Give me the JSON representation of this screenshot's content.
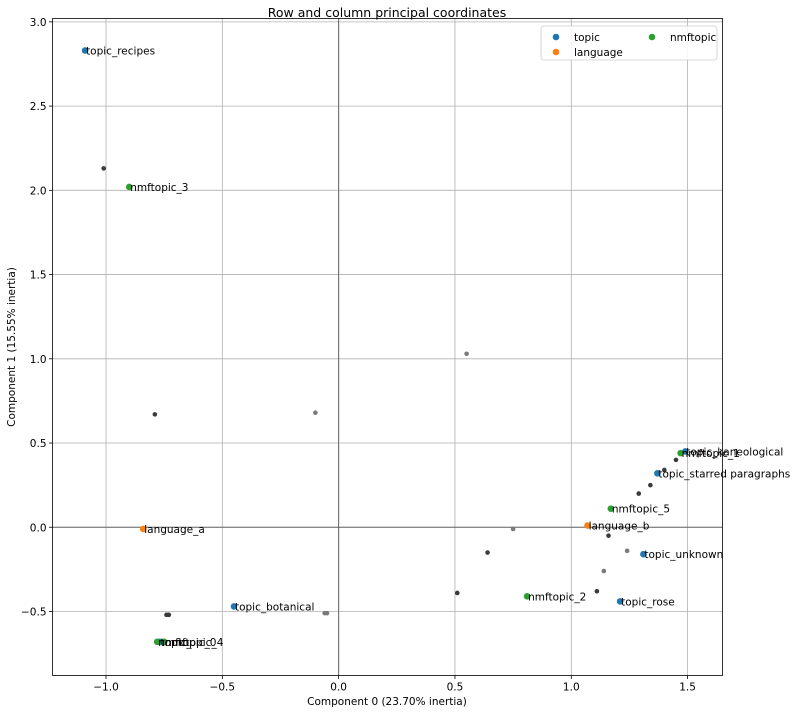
{
  "chart_data": {
    "type": "scatter",
    "title": "Row and column principal coordinates",
    "xlabel": "Component 0 (23.70% inertia)",
    "ylabel": "Component 1 (15.55% inertia)",
    "xlim": [
      -1.23,
      1.65
    ],
    "ylim": [
      -0.88,
      3.02
    ],
    "xticks": [
      -1.0,
      -0.5,
      0.0,
      0.5,
      1.0,
      1.5
    ],
    "xtick_labels": [
      "−1.0",
      "−0.5",
      "0.0",
      "0.5",
      "1.0",
      "1.5"
    ],
    "yticks": [
      -0.5,
      0.0,
      0.5,
      1.0,
      1.5,
      2.0,
      2.5,
      3.0
    ],
    "ytick_labels": [
      "−0.5",
      "0.0",
      "0.5",
      "1.0",
      "1.5",
      "2.0",
      "2.5",
      "3.0"
    ],
    "grid": true,
    "legend_position": "top-right",
    "series": [
      {
        "name": "topic",
        "color": "#1f77b4",
        "points": [
          {
            "label": "topic_recipes",
            "x": -1.09,
            "y": 2.83
          },
          {
            "label": "topic_botanical",
            "x": -0.45,
            "y": -0.47
          },
          {
            "label": "topic_rose",
            "x": 1.21,
            "y": -0.44
          },
          {
            "label": "topic_unknown",
            "x": 1.31,
            "y": -0.16
          },
          {
            "label": "topic_starred paragraphs",
            "x": 1.37,
            "y": 0.32
          },
          {
            "label": "topic_kaneological",
            "x": 1.49,
            "y": 0.45
          },
          {
            "label": "topic_",
            "x": -0.77,
            "y": -0.68
          }
        ]
      },
      {
        "name": "language",
        "color": "#ff7f0e",
        "points": [
          {
            "label": "language_a",
            "x": -0.84,
            "y": -0.01
          },
          {
            "label": "language_b",
            "x": 1.07,
            "y": 0.01
          }
        ]
      },
      {
        "name": "nmftopic",
        "color": "#2ca02c",
        "points": [
          {
            "label": "nmftopic_3",
            "x": -0.9,
            "y": 2.02
          },
          {
            "label": "nmftopic_0",
            "x": -0.78,
            "y": -0.68
          },
          {
            "label": "nmftopic_4",
            "x": -0.75,
            "y": -0.68
          },
          {
            "label": "nmftopic_2",
            "x": 0.81,
            "y": -0.41
          },
          {
            "label": "nmftopic_5",
            "x": 1.17,
            "y": 0.11
          },
          {
            "label": "nmftopic_1",
            "x": 1.47,
            "y": 0.44
          }
        ]
      }
    ],
    "unlabeled_points": [
      {
        "x": -1.01,
        "y": 2.13,
        "color": "#3a3a3a"
      },
      {
        "x": -0.79,
        "y": 0.67,
        "color": "#3a3a3a"
      },
      {
        "x": -0.1,
        "y": 0.68,
        "color": "#7a7a7a"
      },
      {
        "x": 0.55,
        "y": 1.03,
        "color": "#7a7a7a"
      },
      {
        "x": -0.74,
        "y": -0.52,
        "color": "#3a3a3a"
      },
      {
        "x": -0.73,
        "y": -0.52,
        "color": "#3a3a3a"
      },
      {
        "x": -0.06,
        "y": -0.51,
        "color": "#7a7a7a"
      },
      {
        "x": -0.05,
        "y": -0.51,
        "color": "#7a7a7a"
      },
      {
        "x": 0.51,
        "y": -0.39,
        "color": "#3a3a3a"
      },
      {
        "x": 0.64,
        "y": -0.15,
        "color": "#3a3a3a"
      },
      {
        "x": 0.75,
        "y": -0.01,
        "color": "#7a7a7a"
      },
      {
        "x": 1.11,
        "y": -0.38,
        "color": "#3a3a3a"
      },
      {
        "x": 1.14,
        "y": -0.26,
        "color": "#7a7a7a"
      },
      {
        "x": 1.16,
        "y": -0.05,
        "color": "#3a3a3a"
      },
      {
        "x": 1.24,
        "y": -0.14,
        "color": "#7a7a7a"
      },
      {
        "x": 1.29,
        "y": 0.2,
        "color": "#3a3a3a"
      },
      {
        "x": 1.34,
        "y": 0.25,
        "color": "#3a3a3a"
      },
      {
        "x": 1.4,
        "y": 0.34,
        "color": "#3a3a3a"
      },
      {
        "x": 1.45,
        "y": 0.4,
        "color": "#3a3a3a"
      }
    ]
  }
}
